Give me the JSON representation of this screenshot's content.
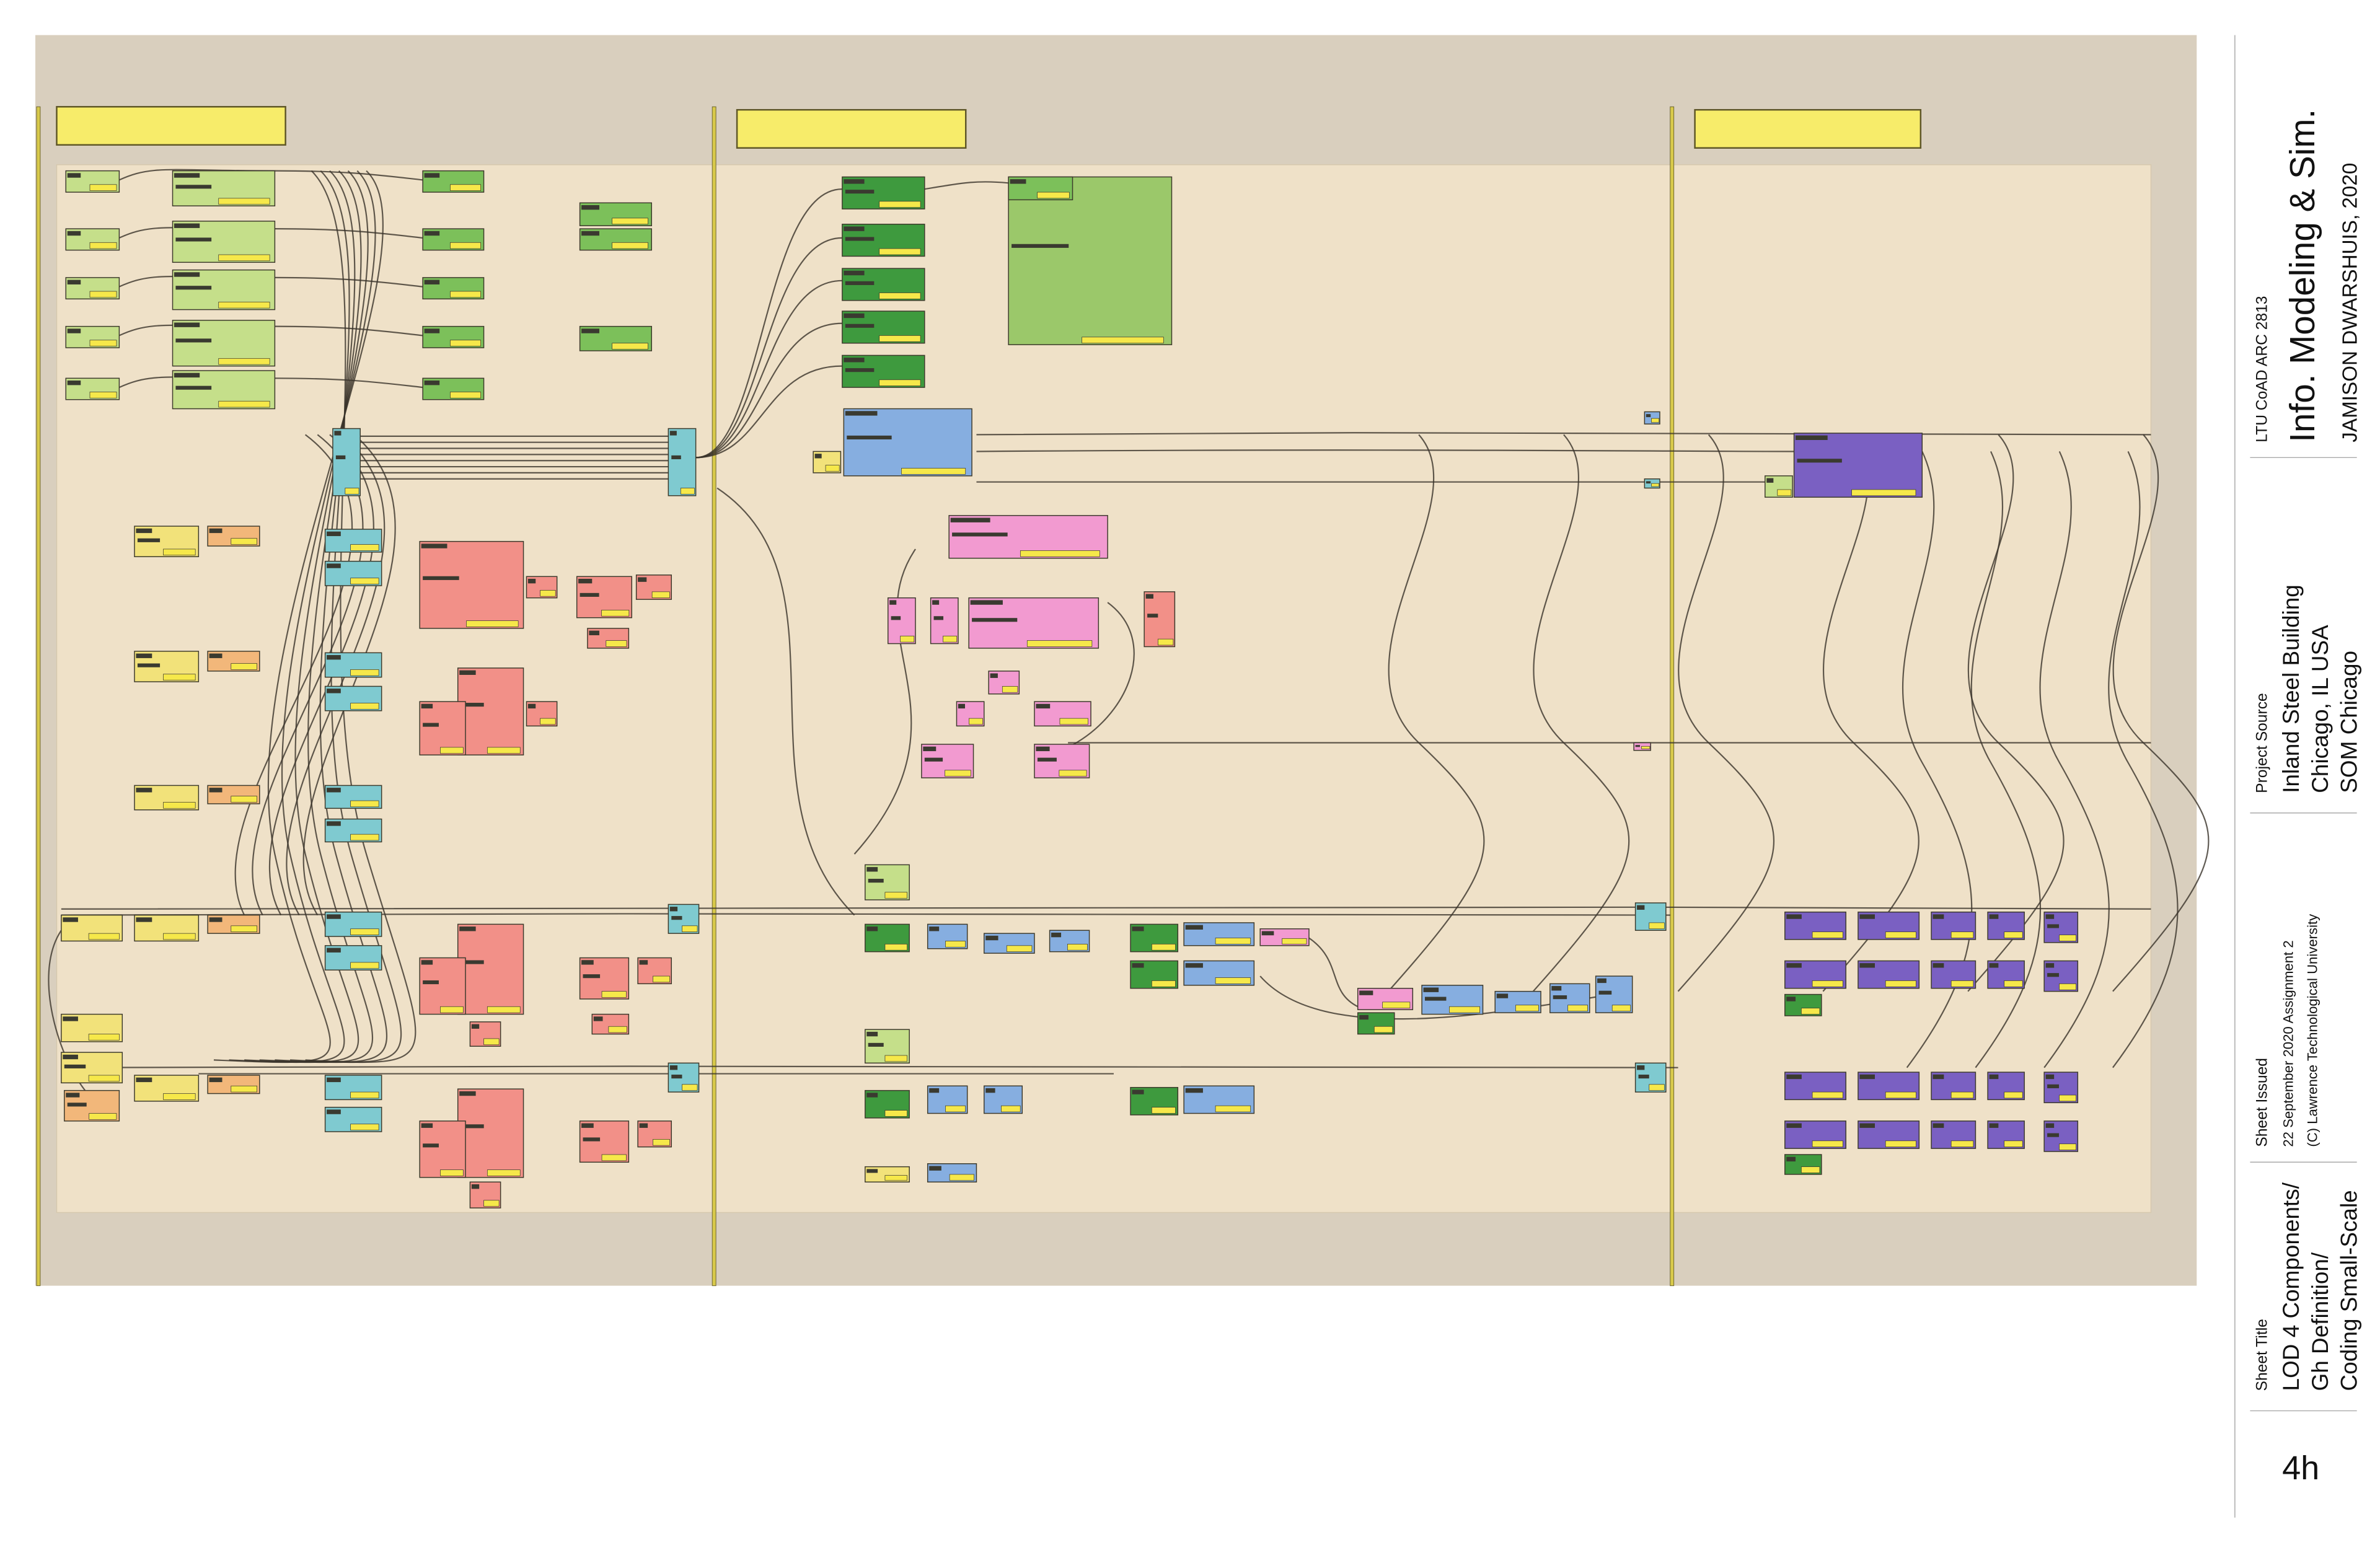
{
  "title_block": {
    "course": "LTU CoAD ARC 2813",
    "course_title": "Info. Modeling & Sim.",
    "author": "JAMISON DWARSHUIS, 2020",
    "project_source_label": "Project Source",
    "project_lines": [
      "Inland Steel Building",
      "Chicago, IL USA",
      "SOM Chicago"
    ],
    "sheet_issued_label": "Sheet Issued",
    "issued_lines": [
      "22 September 2020  Assignment 2",
      "(C) Lawrence Technological University"
    ],
    "sheet_title_label": "Sheet Title",
    "sheet_title_lines": [
      "LOD 4 Components/",
      "Gh Definition/",
      "Coding Small-Scale"
    ],
    "sheet_number": "4h"
  },
  "canvas": {
    "group_headers": [
      "",
      "",
      ""
    ]
  },
  "colors": {
    "canvas_bg": "#d9cfbe",
    "panel_bg": "#efe1c8",
    "header_yellow": "#f7ec6a",
    "divider_yellow": "#d8c94a",
    "wire": "#3a332b",
    "lime": "#c5df8a",
    "green": "#7cc05a",
    "dark_green": "#3e9a3e",
    "big_green": "#9bc86a",
    "blue": "#86aee0",
    "teal": "#7fcad0",
    "pink": "#f29ad0",
    "salmon": "#f29088",
    "yellow": "#f2e27a",
    "orange": "#f2b77a",
    "purple": "#7a60c2",
    "param_yellow": "#f6e84a"
  }
}
